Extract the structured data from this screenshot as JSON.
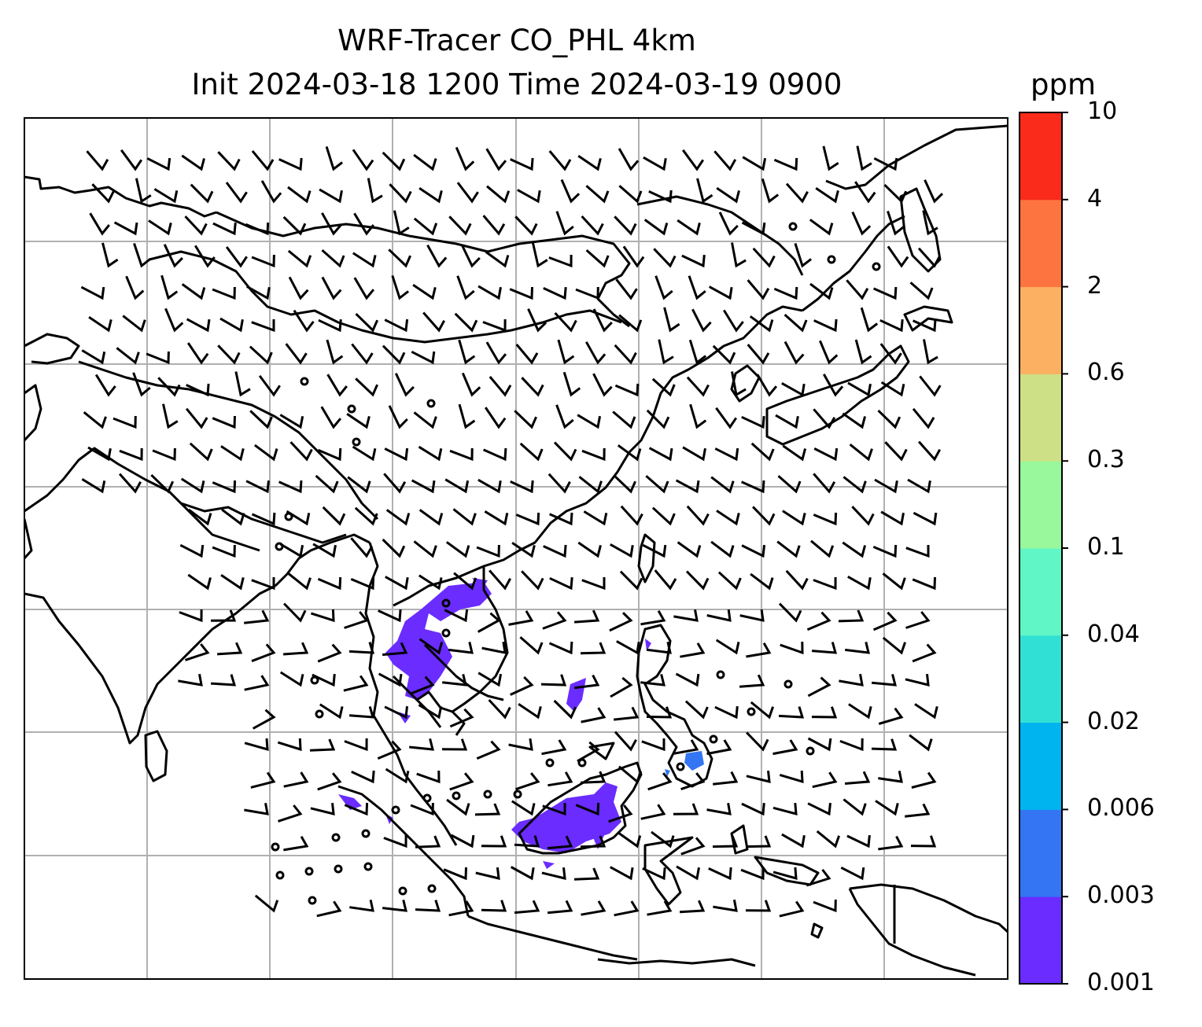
{
  "title": {
    "line1": "WRF-Tracer CO_PHL 4km",
    "line2": "Init 2024-03-18 1200 Time 2024-03-19 0900"
  },
  "colorbar": {
    "unit": "ppm",
    "levels": [
      "0.001",
      "0.003",
      "0.006",
      "0.02",
      "0.04",
      "0.1",
      "0.3",
      "0.6",
      "2",
      "4",
      "10"
    ],
    "colors": [
      "#6a2cff",
      "#3375f2",
      "#00b4ef",
      "#31e0d4",
      "#60f6c5",
      "#98f89b",
      "#cee086",
      "#fbb062",
      "#fd7440",
      "#fa2b1a"
    ]
  },
  "map": {
    "frame_color": "#000000",
    "grid_color": "#b0b0b0",
    "coastline_color": "#000000",
    "tracer_color": "#6a2cff",
    "tracer_color_mid": "#3375f2",
    "barb_color": "#000000"
  }
}
